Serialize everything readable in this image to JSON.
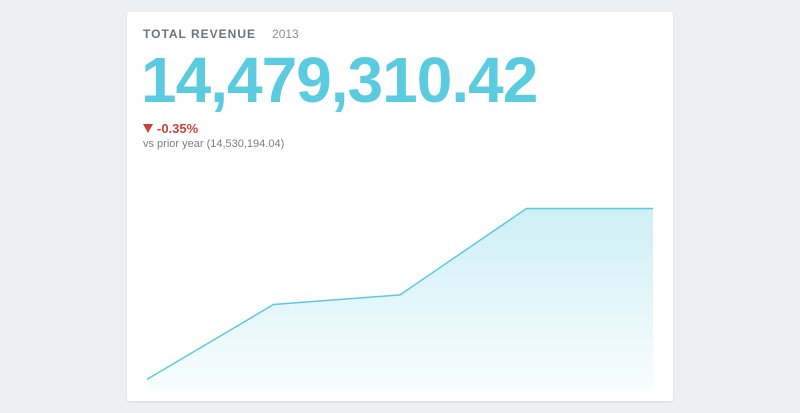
{
  "card": {
    "title": "TOTAL REVENUE",
    "period": "2013",
    "value": "14,479,310.42",
    "change": "-0.35%",
    "change_direction": "down",
    "comparison": "vs prior year (14,530,194.04)"
  },
  "colors": {
    "accent": "#5bcbe0",
    "negative": "#c9443a",
    "background": "#eeeff1"
  },
  "chart_data": {
    "type": "area",
    "title": "",
    "xlabel": "",
    "ylabel": "",
    "series": [
      {
        "values": [
          0.5,
          4.4,
          4.9,
          9.4,
          9.4
        ]
      }
    ],
    "ylim": [
      0,
      10
    ],
    "grid": false
  }
}
